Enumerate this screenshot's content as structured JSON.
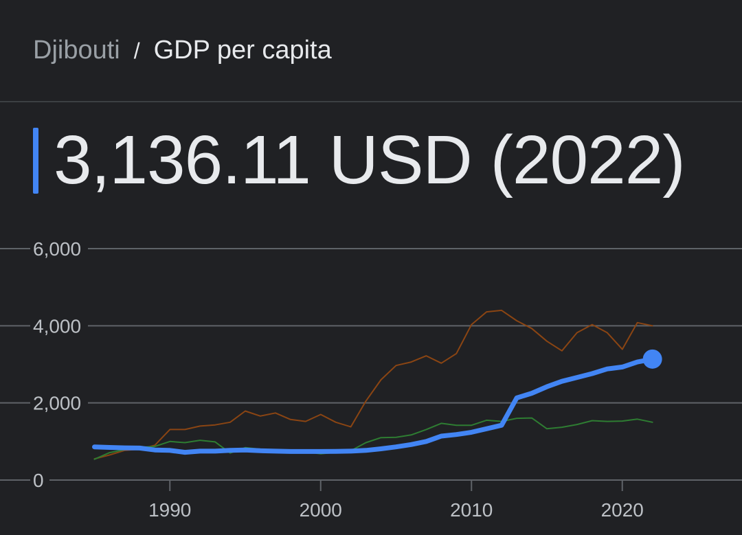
{
  "breadcrumb": {
    "parent": "Djibouti",
    "separator": "/",
    "current": "GDP per capita"
  },
  "headline": {
    "value": "3,136.11",
    "unit": "USD",
    "year_label": "(2022)"
  },
  "colors": {
    "background": "#202124",
    "accent": "#4285f4",
    "grid": "#5f6368",
    "tick_text": "#bdc1c6",
    "series_brown": "#8b4513",
    "series_green": "#2e7d32"
  },
  "chart_data": {
    "type": "line",
    "title": "",
    "xlabel": "",
    "ylabel": "",
    "xlim": [
      1979,
      2026
    ],
    "ylim": [
      0,
      6000
    ],
    "x_ticks": [
      1990,
      2000,
      2010,
      2020
    ],
    "y_ticks": [
      0,
      2000,
      4000,
      6000
    ],
    "y_tick_labels": [
      "0",
      "2,000",
      "4,000",
      "6,000"
    ],
    "grid": true,
    "series": [
      {
        "name": "",
        "color": "#8b4513",
        "x": [
          1985,
          1986,
          1987,
          1988,
          1989,
          1990,
          1991,
          1992,
          1993,
          1994,
          1995,
          1996,
          1997,
          1998,
          1999,
          2000,
          2001,
          2002,
          2003,
          2004,
          2005,
          2006,
          2007,
          2008,
          2009,
          2010,
          2011,
          2012,
          2013,
          2014,
          2015,
          2016,
          2017,
          2018,
          2019,
          2020,
          2021,
          2022
        ],
        "y": [
          550,
          650,
          770,
          800,
          900,
          1310,
          1310,
          1400,
          1430,
          1500,
          1790,
          1660,
          1740,
          1570,
          1520,
          1700,
          1500,
          1380,
          2050,
          2600,
          2970,
          3060,
          3220,
          3030,
          3280,
          4030,
          4360,
          4400,
          4130,
          3930,
          3600,
          3350,
          3820,
          4030,
          3820,
          3390,
          4080,
          4000
        ]
      },
      {
        "name": "",
        "color": "#2e7d32",
        "x": [
          1985,
          1986,
          1987,
          1988,
          1989,
          1990,
          1991,
          1992,
          1993,
          1994,
          1995,
          1996,
          1997,
          1998,
          1999,
          2000,
          2001,
          2002,
          2003,
          2004,
          2005,
          2006,
          2007,
          2008,
          2009,
          2010,
          2011,
          2012,
          2013,
          2014,
          2015,
          2016,
          2017,
          2018,
          2019,
          2020,
          2021,
          2022
        ],
        "y": [
          540,
          710,
          790,
          850,
          870,
          1000,
          970,
          1030,
          990,
          700,
          840,
          800,
          750,
          720,
          730,
          680,
          720,
          760,
          970,
          1100,
          1110,
          1170,
          1310,
          1470,
          1420,
          1420,
          1550,
          1520,
          1600,
          1610,
          1330,
          1370,
          1440,
          1540,
          1520,
          1530,
          1580,
          1500
        ]
      },
      {
        "name": "",
        "color": "#4285f4",
        "x": [
          1985,
          1986,
          1987,
          1988,
          1989,
          1990,
          1991,
          1992,
          1993,
          1994,
          1995,
          1996,
          1997,
          1998,
          1999,
          2000,
          2001,
          2002,
          2003,
          2004,
          2005,
          2006,
          2007,
          2008,
          2009,
          2010,
          2011,
          2012,
          2013,
          2014,
          2015,
          2016,
          2017,
          2018,
          2019,
          2020,
          2021,
          2022
        ],
        "y": [
          860,
          845,
          835,
          830,
          780,
          770,
          720,
          750,
          750,
          770,
          780,
          760,
          750,
          740,
          740,
          740,
          745,
          750,
          770,
          810,
          860,
          920,
          1000,
          1140,
          1180,
          1240,
          1330,
          1420,
          2130,
          2250,
          2420,
          2560,
          2660,
          2760,
          2880,
          2930,
          3060,
          3136.11
        ]
      }
    ]
  }
}
